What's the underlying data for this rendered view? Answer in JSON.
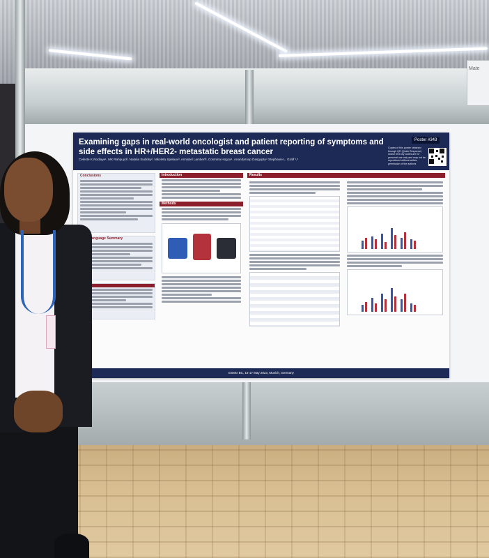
{
  "poster": {
    "title": "Examining gaps in real-world oncologist and patient reporting of symptoms and side effects in HR+/HER2- metastatic breast cancer",
    "authors": "Celeste K.Nodiaye¹, MK Rahpuyd², Natalia Sudicky², Nikoleta Spelaux³, Annabel Lambert³, Cosmina Hogca⁴, Anandaroop Dasgupta⁴ Stephanie L. Graff ¹,⁵",
    "poster_number": "Poster #343",
    "qr_note": "Copies of this poster obtained through QR (Quick Response) and/or text key codes are for personal use only and may not be reproduced without written permission of the authors",
    "footer": "ESMO BC, 15-17 May 2023, Munich, Germany",
    "sections": {
      "introduction": "Introduction",
      "methods": "Methods",
      "conclusions": "Conclusions",
      "plain_language_summary": "Plain Language Summary",
      "results": "Results"
    }
  },
  "side_sign": "Mate"
}
